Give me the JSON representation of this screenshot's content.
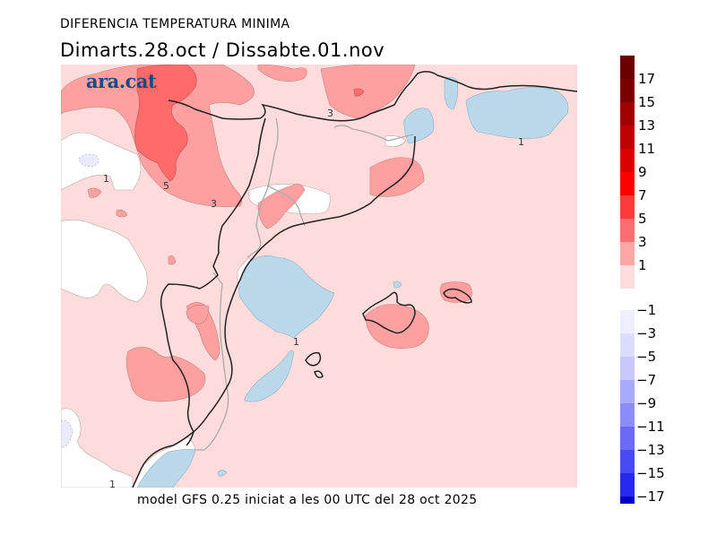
{
  "header": {
    "title": "DIFERENCIA TEMPERATURA MINIMA",
    "subtitle": "Dimarts.28.oct / Dissabte.01.nov"
  },
  "logo": {
    "text": "ara.cat",
    "color": "#1b4a80"
  },
  "footer": {
    "text": "model GFS 0.25 iniciat a les 00 UTC del 28 oct 2025"
  },
  "map": {
    "region": "Catalonia, Andorra, Balearic Islands and surroundings",
    "variable": "Minimum temperature difference (°C)",
    "contour_labels": [
      "1",
      "5",
      "3",
      "3",
      "1",
      "1",
      "1"
    ],
    "colors": {
      "bg_1_3": "#ffdcdc",
      "band_3_5": "#ffa0a0",
      "band_5_7": "#ff6a6a",
      "neg_-1_1": "#ffffff",
      "neg_-3_-1": "#eaeaff",
      "cool": "#b9d8ea",
      "border": "#222222",
      "region_border": "#aaaaaa"
    }
  },
  "legend": {
    "positive": [
      {
        "label": "17",
        "color": "#7a0000"
      },
      {
        "label": "15",
        "color": "#a00000"
      },
      {
        "label": "13",
        "color": "#c00000"
      },
      {
        "label": "11",
        "color": "#dd0000"
      },
      {
        "label": "9",
        "color": "#ff0000"
      },
      {
        "label": "7",
        "color": "#ff3a3a"
      },
      {
        "label": "5",
        "color": "#ff6e6e"
      },
      {
        "label": "3",
        "color": "#ffa6a6"
      },
      {
        "label": "1",
        "color": "#ffdcdc"
      }
    ],
    "top_color": "#6a0000",
    "negative": [
      {
        "label": "−1",
        "color": "#eeeefe"
      },
      {
        "label": "−3",
        "color": "#dcdcfc"
      },
      {
        "label": "−5",
        "color": "#c8c8fc"
      },
      {
        "label": "−7",
        "color": "#aaaafc"
      },
      {
        "label": "−9",
        "color": "#8c8cfa"
      },
      {
        "label": "−11",
        "color": "#6a6af6"
      },
      {
        "label": "−13",
        "color": "#4a4af4"
      },
      {
        "label": "−15",
        "color": "#2828f0"
      },
      {
        "label": "−17",
        "color": "#0000c8"
      }
    ]
  }
}
